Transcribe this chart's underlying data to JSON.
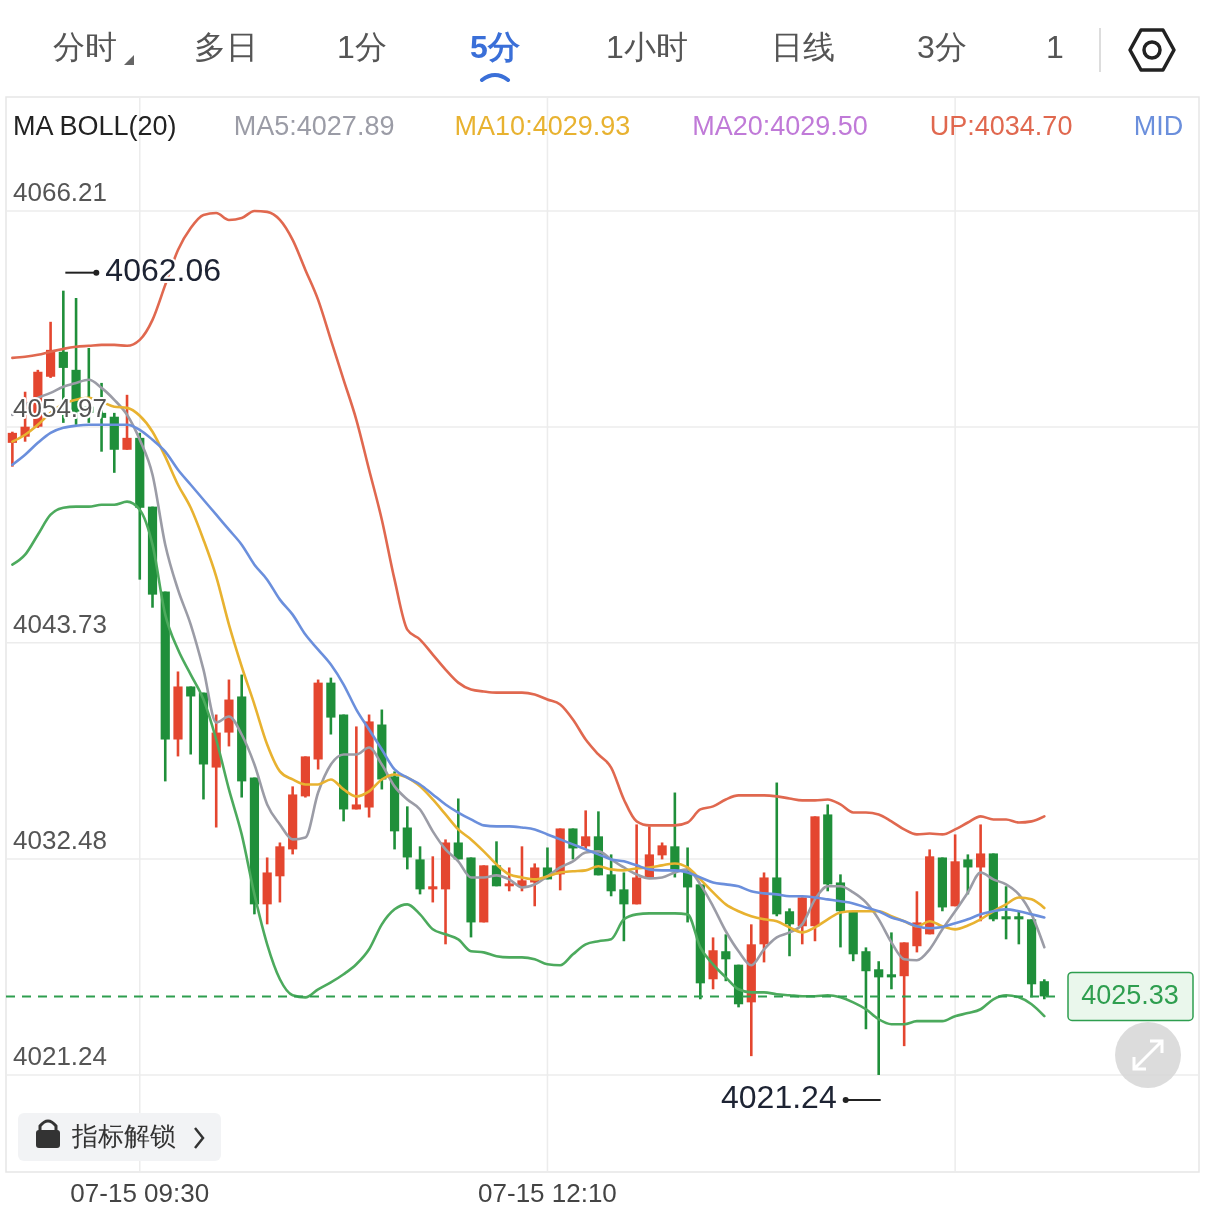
{
  "chart_data": {
    "type": "candlestick",
    "legend_title": "MA BOLL(20)",
    "legend": "top",
    "grid": true,
    "ylim": [
      4016.19,
      4072.14
    ],
    "yticks": [
      4066.21,
      4054.97,
      4043.73,
      4032.48,
      4021.24
    ],
    "categories": [
      null,
      null,
      null,
      null,
      null,
      null,
      null,
      null,
      null,
      null,
      "07-15 09:30",
      null,
      null,
      null,
      null,
      null,
      null,
      null,
      null,
      null,
      null,
      null,
      null,
      null,
      null,
      null,
      null,
      null,
      null,
      null,
      null,
      null,
      null,
      null,
      null,
      null,
      null,
      null,
      null,
      null,
      null,
      null,
      "07-15 12:10",
      null,
      null,
      null,
      null,
      null,
      null,
      null,
      null,
      null,
      null,
      null,
      null,
      null,
      null,
      null,
      null,
      null,
      null,
      null,
      null,
      null,
      null,
      null,
      null,
      null,
      null,
      null,
      null,
      null,
      null,
      null,
      null,
      null,
      null,
      null,
      null,
      null,
      null,
      null
    ],
    "ohlc": [
      [
        4054.14,
        4054.72,
        4052.9,
        4054.66
      ],
      [
        4054.46,
        4056.8,
        4054.2,
        4054.98
      ],
      [
        4054.98,
        4057.94,
        4054.92,
        4057.84
      ],
      [
        4057.58,
        4060.44,
        4057.52,
        4058.98
      ],
      [
        4058.88,
        4062.06,
        4055.18,
        4058.04
      ],
      [
        4057.94,
        4061.68,
        4055.08,
        4055.76
      ],
      [
        4056.02,
        4059.08,
        4055.18,
        4055.7
      ],
      [
        4055.7,
        4057.26,
        4053.68,
        4055.44
      ],
      [
        4055.5,
        4055.7,
        4052.58,
        4053.78
      ],
      [
        4053.78,
        4056.64,
        4053.78,
        4054.4
      ],
      [
        4054.4,
        4054.66,
        4047.02,
        4050.76
      ],
      [
        4050.82,
        4050.82,
        4045.56,
        4046.24
      ],
      [
        4046.4,
        4046.4,
        4036.52,
        4038.7
      ],
      [
        4038.7,
        4042.24,
        4037.82,
        4041.46
      ],
      [
        4041.46,
        4041.46,
        4037.92,
        4040.94
      ],
      [
        4041.14,
        4041.14,
        4035.58,
        4037.4
      ],
      [
        4037.24,
        4040.0,
        4034.12,
        4039.06
      ],
      [
        4039.06,
        4041.82,
        4038.34,
        4040.78
      ],
      [
        4040.94,
        4042.08,
        4035.68,
        4036.52
      ],
      [
        4036.72,
        4036.72,
        4029.6,
        4030.12
      ],
      [
        4030.12,
        4032.56,
        4029.08,
        4031.78
      ],
      [
        4031.58,
        4033.34,
        4030.22,
        4033.14
      ],
      [
        4032.98,
        4036.26,
        4032.72,
        4035.84
      ],
      [
        4035.74,
        4037.82,
        4035.68,
        4037.82
      ],
      [
        4037.66,
        4041.82,
        4037.14,
        4041.66
      ],
      [
        4041.66,
        4041.92,
        4038.96,
        4039.84
      ],
      [
        4040.0,
        4040.0,
        4034.44,
        4035.06
      ],
      [
        4035.06,
        4039.38,
        4035.06,
        4035.32
      ],
      [
        4035.16,
        4040.0,
        4034.64,
        4039.64
      ],
      [
        4039.48,
        4040.26,
        4036.1,
        4036.62
      ],
      [
        4036.78,
        4037.04,
        4032.98,
        4033.92
      ],
      [
        4034.12,
        4035.22,
        4031.94,
        4032.56
      ],
      [
        4032.46,
        4033.14,
        4030.64,
        4030.9
      ],
      [
        4030.9,
        4032.62,
        4030.22,
        4031.06
      ],
      [
        4030.9,
        4033.5,
        4028.04,
        4033.34
      ],
      [
        4033.34,
        4035.63,
        4032.46,
        4032.46
      ],
      [
        4032.56,
        4032.56,
        4028.4,
        4029.18
      ],
      [
        4029.18,
        4032.15,
        4029.18,
        4032.15
      ],
      [
        4032.15,
        4033.4,
        4031.06,
        4031.06
      ],
      [
        4031.06,
        4032.04,
        4030.8,
        4031.21
      ],
      [
        4031.06,
        4033.14,
        4030.8,
        4031.37
      ],
      [
        4031.26,
        4032.25,
        4030.02,
        4032.04
      ],
      [
        4032.04,
        4033.08,
        4031.42,
        4031.42
      ],
      [
        4031.68,
        4034.07,
        4030.85,
        4034.07
      ],
      [
        4034.07,
        4034.07,
        4032.46,
        4033.03
      ],
      [
        4033.14,
        4035.01,
        4032.98,
        4033.66
      ],
      [
        4033.66,
        4034.96,
        4031.63,
        4031.63
      ],
      [
        4031.68,
        4032.72,
        4030.54,
        4030.8
      ],
      [
        4030.9,
        4031.78,
        4028.2,
        4030.12
      ],
      [
        4030.12,
        4034.28,
        4030.12,
        4031.52
      ],
      [
        4031.52,
        4034.18,
        4031.52,
        4032.72
      ],
      [
        4032.67,
        4033.34,
        4032.46,
        4033.19
      ],
      [
        4033.14,
        4035.94,
        4031.52,
        4031.84
      ],
      [
        4031.84,
        4033.08,
        4029.18,
        4031.0
      ],
      [
        4031.16,
        4031.16,
        4025.18,
        4026.01
      ],
      [
        4026.22,
        4028.4,
        4025.7,
        4027.73
      ],
      [
        4027.68,
        4028.56,
        4026.12,
        4027.26
      ],
      [
        4026.98,
        4026.98,
        4024.76,
        4024.92
      ],
      [
        4025.02,
        4029.08,
        4022.22,
        4028.04
      ],
      [
        4028.04,
        4031.78,
        4027.1,
        4031.52
      ],
      [
        4031.52,
        4036.46,
        4029.5,
        4029.6
      ],
      [
        4029.76,
        4029.91,
        4027.42,
        4029.08
      ],
      [
        4028.98,
        4030.48,
        4028.04,
        4030.48
      ],
      [
        4028.98,
        4034.7,
        4028.2,
        4034.7
      ],
      [
        4034.8,
        4035.32,
        4030.8,
        4031.16
      ],
      [
        4031.26,
        4031.68,
        4027.88,
        4029.76
      ],
      [
        4029.76,
        4029.76,
        4027.16,
        4027.52
      ],
      [
        4027.68,
        4027.88,
        4023.62,
        4026.64
      ],
      [
        4026.74,
        4027.16,
        4021.24,
        4026.32
      ],
      [
        4026.48,
        4028.66,
        4025.7,
        4026.32
      ],
      [
        4026.38,
        4028.14,
        4022.74,
        4028.14
      ],
      [
        4027.94,
        4030.8,
        4027.62,
        4029.18
      ],
      [
        4028.56,
        4032.98,
        4028.56,
        4032.62
      ],
      [
        4032.56,
        4032.56,
        4029.76,
        4029.96
      ],
      [
        4030.02,
        4033.76,
        4030.02,
        4032.36
      ],
      [
        4032.46,
        4032.72,
        4030.64,
        4032.04
      ],
      [
        4032.04,
        4034.28,
        4029.24,
        4032.77
      ],
      [
        4032.77,
        4032.77,
        4029.24,
        4029.34
      ],
      [
        4029.5,
        4031.06,
        4028.3,
        4029.34
      ],
      [
        4029.5,
        4029.76,
        4028.04,
        4029.34
      ],
      [
        4029.34,
        4029.34,
        4025.28,
        4025.96
      ],
      [
        4026.12,
        4026.22,
        4025.18,
        4025.33
      ]
    ],
    "series": [
      {
        "type": "line",
        "name": "MA5:4027.89",
        "color": "#9b9ca6",
        "values": [
          4055.6,
          4056.12,
          4056.48,
          4056.74,
          4057.06,
          4057.26,
          4057.42,
          4057.0,
          4056.38,
          4055.6,
          4054.3,
          4052.48,
          4048.84,
          4046.5,
          4044.68,
          4042.34,
          4039.58,
          4039.9,
          4038.96,
          4037.4,
          4035.32,
          4034.28,
          4033.5,
          4033.6,
          4035.94,
          4037.4,
          4037.92,
          4037.92,
          4038.28,
          4037.4,
          4036.26,
          4035.58,
          4035.06,
          4033.92,
          4032.98,
          4032.36,
          4031.52,
          4031.52,
          4031.63,
          4031.42,
          4031.0,
          4031.16,
          4031.58,
          4032.04,
          4032.36,
          4032.82,
          4032.88,
          4032.46,
          4032.04,
          4031.68,
          4031.47,
          4031.52,
          4031.78,
          4031.94,
          4031.16,
          4030.02,
          4028.72,
          4027.68,
          4026.95,
          4027.78,
          4028.4,
          4028.66,
          4029.08,
          4030.38,
          4031.06,
          4031.06,
          4030.74,
          4030.22,
          4029.34,
          4028.14,
          4027.26,
          4027.21,
          4027.78,
          4028.82,
          4029.76,
          4030.74,
          4031.78,
          4031.42,
          4031.16,
          4030.64,
          4029.6,
          4027.89
        ]
      },
      {
        "type": "line",
        "name": "MA10:4029.93",
        "color": "#e8b230",
        "values": [
          4054.2,
          4054.56,
          4055.08,
          4055.7,
          4056.17,
          4056.38,
          4056.48,
          4056.28,
          4056.02,
          4055.96,
          4055.55,
          4054.72,
          4053.42,
          4051.96,
          4050.76,
          4049.1,
          4047.18,
          4044.68,
          4042.5,
          4040.52,
          4038.44,
          4037.04,
          4036.62,
          4036.36,
          4036.36,
          4036.62,
          4036.1,
          4035.74,
          4036.0,
          4036.62,
          4036.88,
          4036.72,
          4036.26,
          4035.58,
          4034.8,
          4034.02,
          4033.5,
          4032.88,
          4032.2,
          4031.68,
          4031.52,
          4031.42,
          4031.58,
          4031.78,
          4031.84,
          4031.89,
          4032.1,
          4031.94,
          4031.89,
          4031.99,
          4032.04,
          4032.15,
          4032.25,
          4032.04,
          4031.42,
          4030.74,
          4030.12,
          4029.76,
          4029.5,
          4029.34,
          4029.24,
          4028.92,
          4028.66,
          4028.92,
          4029.34,
          4029.7,
          4029.76,
          4029.76,
          4029.76,
          4029.5,
          4029.24,
          4028.98,
          4029.24,
          4028.98,
          4028.82,
          4029.02,
          4029.34,
          4029.76,
          4030.12,
          4030.48,
          4030.38,
          4029.93
        ]
      },
      {
        "type": "line",
        "name": "MA20:4029.50",
        "color": "#c07ad8",
        "values": [
          null,
          null,
          null,
          null,
          null,
          null,
          null,
          null,
          null,
          null,
          null,
          null,
          null,
          null,
          null,
          null,
          null,
          null,
          null,
          null,
          null,
          null,
          null,
          null,
          null,
          null,
          null,
          null,
          null,
          null,
          null,
          null,
          null,
          null,
          null,
          null,
          null,
          null,
          null,
          null,
          null,
          null,
          null,
          null,
          null,
          null,
          null,
          null,
          null,
          null,
          null,
          null,
          null,
          null,
          null,
          null,
          null,
          null,
          null,
          null,
          null,
          null,
          null,
          null,
          null,
          null,
          null,
          null,
          null,
          null,
          null,
          null,
          null,
          null,
          null,
          null,
          null,
          null,
          null,
          null,
          null,
          null
        ]
      },
      {
        "type": "line",
        "name": "UP:4034.70",
        "color": "#e0684f",
        "values": [
          4058.56,
          4058.62,
          4058.72,
          4058.88,
          4059.03,
          4059.14,
          4059.19,
          4059.24,
          4059.24,
          4059.19,
          4059.5,
          4060.54,
          4062.36,
          4064.18,
          4065.32,
          4066.0,
          4066.1,
          4065.74,
          4065.84,
          4066.21,
          4066.16,
          4065.74,
          4064.7,
          4063.14,
          4061.58,
          4059.5,
          4057.42,
          4055.34,
          4052.74,
          4050.14,
          4047.02,
          4044.42,
          4043.9,
          4043.12,
          4042.34,
          4041.66,
          4041.3,
          4041.2,
          4041.14,
          4041.14,
          4041.14,
          4041.04,
          4040.78,
          4040.52,
          4039.74,
          4038.7,
          4037.92,
          4037.24,
          4035.58,
          4034.44,
          4034.23,
          4034.23,
          4034.23,
          4034.38,
          4035.06,
          4035.22,
          4035.58,
          4035.79,
          4035.79,
          4035.79,
          4035.74,
          4035.63,
          4035.53,
          4035.53,
          4035.58,
          4035.32,
          4034.9,
          4034.9,
          4034.8,
          4034.44,
          4034.02,
          4033.76,
          4033.81,
          4033.76,
          4034.02,
          4034.38,
          4034.7,
          4034.54,
          4034.54,
          4034.38,
          4034.44,
          4034.7
        ]
      },
      {
        "type": "line",
        "name": "MID",
        "color": "#6b8fdc",
        "values": [
          4053.0,
          4053.52,
          4054.14,
          4054.66,
          4054.92,
          4055.03,
          4055.08,
          4055.08,
          4055.08,
          4055.08,
          4054.82,
          4054.3,
          4053.68,
          4052.74,
          4051.96,
          4051.18,
          4050.4,
          4049.62,
          4048.84,
          4047.8,
          4047.02,
          4045.98,
          4045.2,
          4044.16,
          4043.38,
          4042.6,
          4041.56,
          4040.26,
          4039.22,
          4038.18,
          4037.14,
          4036.72,
          4036.36,
          4035.84,
          4035.32,
          4034.9,
          4034.54,
          4034.23,
          4034.18,
          4034.18,
          4034.12,
          4034.02,
          4033.76,
          4033.5,
          4033.24,
          4032.98,
          4032.72,
          4032.46,
          4032.36,
          4032.15,
          4031.94,
          4031.89,
          4031.89,
          4031.78,
          4031.52,
          4031.26,
          4031.16,
          4031.06,
          4030.8,
          4030.69,
          4030.64,
          4030.54,
          4030.54,
          4030.48,
          4030.38,
          4030.28,
          4030.17,
          4029.96,
          4029.76,
          4029.44,
          4029.24,
          4028.98,
          4028.88,
          4028.94,
          4029.14,
          4029.34,
          4029.6,
          4029.76,
          4029.86,
          4029.76,
          4029.6,
          4029.44
        ]
      },
      {
        "type": "line",
        "color": "#4caa5d",
        "values": [
          4047.8,
          4048.32,
          4049.36,
          4050.4,
          4050.76,
          4050.82,
          4050.82,
          4050.92,
          4050.92,
          4051.08,
          4050.66,
          4048.84,
          4045.2,
          4043.38,
          4042.08,
          4040.78,
          4038.7,
          4036.1,
          4033.76,
          4030.64,
          4028.04,
          4026.22,
          4025.39,
          4025.28,
          4025.7,
          4026.06,
          4026.48,
          4027.0,
          4027.78,
          4029.08,
          4029.86,
          4030.12,
          4029.6,
          4028.82,
          4028.56,
          4028.3,
          4027.68,
          4027.62,
          4027.42,
          4027.36,
          4027.36,
          4027.26,
          4027.0,
          4026.95,
          4027.52,
          4028.04,
          4028.2,
          4028.3,
          4029.34,
          4029.6,
          4029.65,
          4029.65,
          4029.65,
          4029.6,
          4027.88,
          4027.0,
          4026.32,
          4025.7,
          4025.54,
          4025.54,
          4025.44,
          4025.39,
          4025.34,
          4025.34,
          4025.39,
          4025.28,
          4025.02,
          4024.66,
          4024.14,
          4023.88,
          4023.88,
          4024.04,
          4024.04,
          4024.04,
          4024.3,
          4024.46,
          4024.66,
          4025.18,
          4025.39,
          4025.28,
          4024.92,
          4024.3
        ]
      }
    ],
    "ref_lines": [
      {
        "axis": "y",
        "value": 4025.33,
        "label": "4025.33",
        "color": "#2e9e4f",
        "line_style": "dashed"
      }
    ],
    "annotations": [
      "分时",
      "多日",
      "1分",
      "5分",
      "1小时",
      "日线",
      "3分",
      "1",
      "指标解锁",
      "4062.06",
      "4021.24"
    ]
  }
}
